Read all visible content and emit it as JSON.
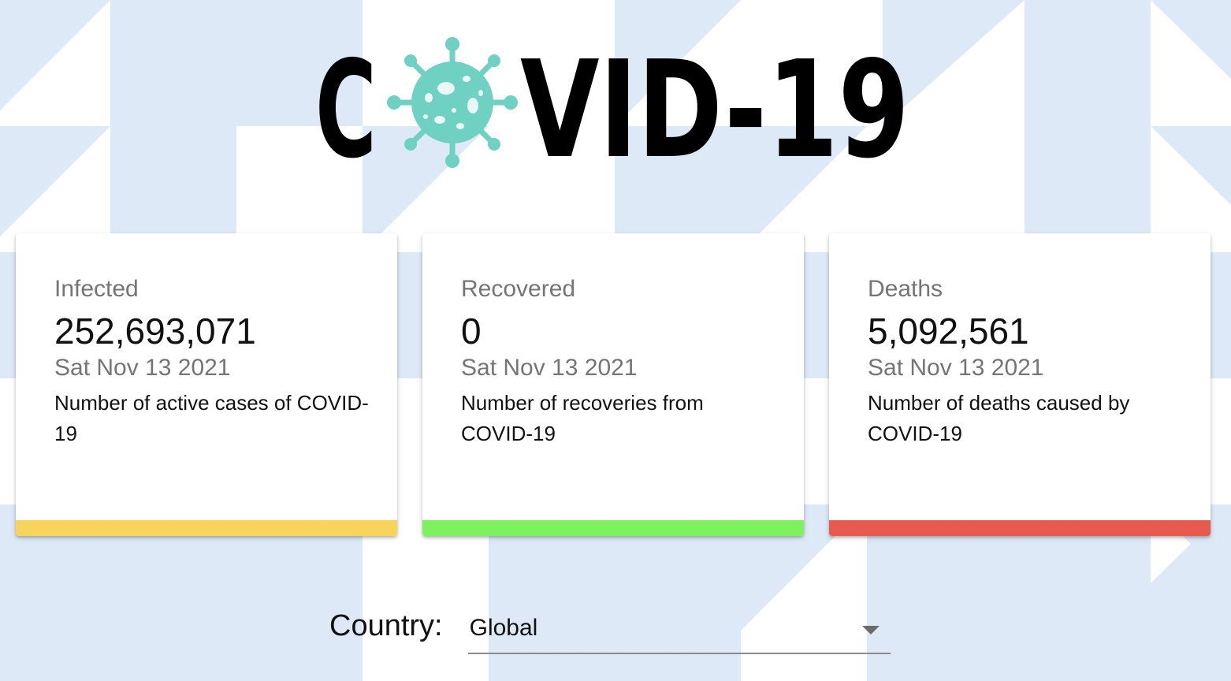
{
  "logo": {
    "text_left": "C",
    "text_right": "VID-19",
    "virus_color": "#6fd1c1"
  },
  "cards": [
    {
      "label": "Infected",
      "value": "252,693,071",
      "date": "Sat Nov 13 2021",
      "description": "Number of active cases of COVID-19",
      "bar_color": "#f8d45c"
    },
    {
      "label": "Recovered",
      "value": "0",
      "date": "Sat Nov 13 2021",
      "description": "Number of recoveries from COVID-19",
      "bar_color": "#7ef15f"
    },
    {
      "label": "Deaths",
      "value": "5,092,561",
      "date": "Sat Nov 13 2021",
      "description": "Number of deaths caused by COVID-19",
      "bar_color": "#e85a4f"
    }
  ],
  "country_picker": {
    "label": "Country:",
    "selected": "Global",
    "icon": "chevron-down-icon"
  },
  "colors": {
    "background_pattern": "#dde9f6",
    "background": "#ffffff"
  }
}
